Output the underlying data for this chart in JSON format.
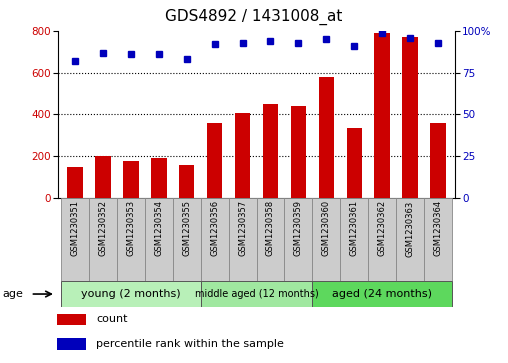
{
  "title": "GDS4892 / 1431008_at",
  "samples": [
    "GSM1230351",
    "GSM1230352",
    "GSM1230353",
    "GSM1230354",
    "GSM1230355",
    "GSM1230356",
    "GSM1230357",
    "GSM1230358",
    "GSM1230359",
    "GSM1230360",
    "GSM1230361",
    "GSM1230362",
    "GSM1230363",
    "GSM1230364"
  ],
  "counts": [
    148,
    202,
    175,
    190,
    155,
    360,
    405,
    450,
    440,
    580,
    335,
    790,
    770,
    360
  ],
  "percentiles": [
    82,
    87,
    86,
    86,
    83,
    92,
    93,
    94,
    93,
    95,
    91,
    99,
    96,
    93
  ],
  "groups": [
    {
      "label": "young (2 months)",
      "start": 0,
      "end": 5
    },
    {
      "label": "middle aged (12 months)",
      "start": 5,
      "end": 9
    },
    {
      "label": "aged (24 months)",
      "start": 9,
      "end": 14
    }
  ],
  "group_colors": [
    "#B8F0B8",
    "#A0E8A0",
    "#5DD85D"
  ],
  "ylim_left": [
    0,
    800
  ],
  "ylim_right": [
    0,
    100
  ],
  "yticks_left": [
    0,
    200,
    400,
    600,
    800
  ],
  "yticks_right": [
    0,
    25,
    50,
    75,
    100
  ],
  "bar_color": "#CC0000",
  "dot_color": "#0000BB",
  "bg_color": "#FFFFFF",
  "grid_color": "black",
  "title_fontsize": 11,
  "tick_fontsize": 7.5,
  "age_label": "age",
  "legend_count": "count",
  "legend_percentile": "percentile rank within the sample",
  "cell_color": "#CCCCCC",
  "cell_edge": "#888888"
}
